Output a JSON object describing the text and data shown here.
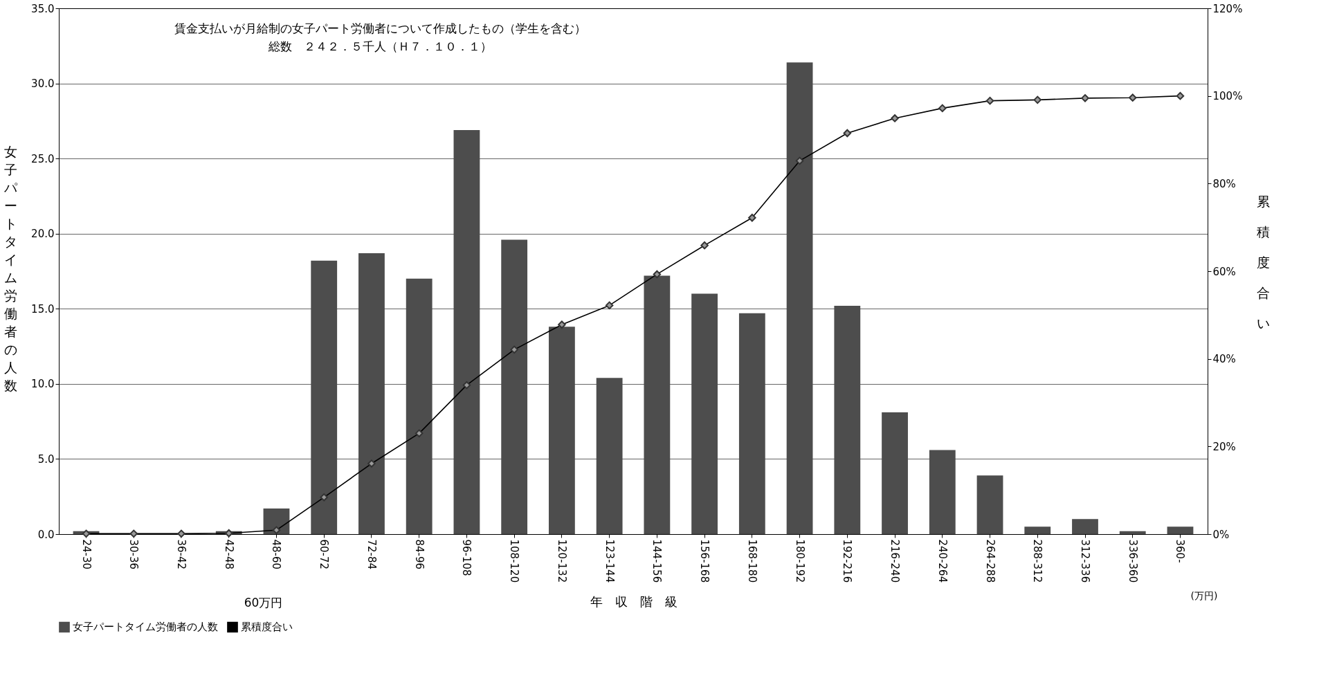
{
  "chart_data": {
    "type": "bar",
    "xlabel": "年　収　階　級",
    "ylabel": "女子パートタイム労働者の人数",
    "y2label": "累積度合い",
    "categories": [
      "24-30",
      "30-36",
      "36-42",
      "42-48",
      "48-60",
      "60-72",
      "72-84",
      "84-96",
      "96-108",
      "108-120",
      "120-132",
      "123-144",
      "144-156",
      "156-168",
      "168-180",
      "180-192",
      "192-216",
      "216-240",
      "240-264",
      "264-288",
      "288-312",
      "312-336",
      "336-360",
      "360-"
    ],
    "series": [
      {
        "name": "女子パートタイム労働者の人数",
        "color": "#4d4d4d",
        "values": [
          0.2,
          0,
          0,
          0.2,
          1.7,
          18.2,
          18.7,
          17.0,
          26.9,
          19.6,
          13.8,
          10.4,
          17.2,
          16.0,
          14.7,
          31.4,
          15.2,
          8.1,
          5.6,
          3.9,
          0.5,
          1.0,
          0.2,
          0.5
        ]
      },
      {
        "name": "累積度合い",
        "type": "line",
        "axis": "y2",
        "color": "#000000",
        "marker": "diamond",
        "values": [
          0.1,
          0.1,
          0.1,
          0.2,
          0.9,
          8.4,
          16.1,
          23.0,
          34.0,
          42.1,
          47.8,
          52.2,
          59.3,
          65.9,
          72.2,
          85.2,
          91.5,
          94.9,
          97.2,
          98.9,
          99.1,
          99.5,
          99.6,
          100
        ]
      }
    ],
    "ylim": [
      0,
      35
    ],
    "yticks": [
      {
        "value": 0,
        "label": "0.0"
      },
      {
        "value": 5,
        "label": "5.0"
      },
      {
        "value": 10,
        "label": "10.0"
      },
      {
        "value": 15,
        "label": "15.0"
      },
      {
        "value": 20,
        "label": "20.0"
      },
      {
        "value": 25,
        "label": "25.0"
      },
      {
        "value": 30,
        "label": "30.0"
      },
      {
        "value": 35,
        "label": "35.0"
      }
    ],
    "y2lim": [
      0,
      120
    ],
    "y2ticks": [
      {
        "value": 0,
        "label": "0%"
      },
      {
        "value": 20,
        "label": "20%"
      },
      {
        "value": 40,
        "label": "40%"
      },
      {
        "value": 60,
        "label": "60%"
      },
      {
        "value": 80,
        "label": "80%"
      },
      {
        "value": 100,
        "label": "100%"
      },
      {
        "value": 120,
        "label": "120%"
      }
    ],
    "grid": "y",
    "legend": "bottom",
    "annotations": [
      "賃金支払いが月給制の女子パート労働者について作成したもの（学生を含む）",
      "総数　２４２．５千人（Ｈ７．１０．１）",
      "60万円",
      "(万円)"
    ]
  }
}
